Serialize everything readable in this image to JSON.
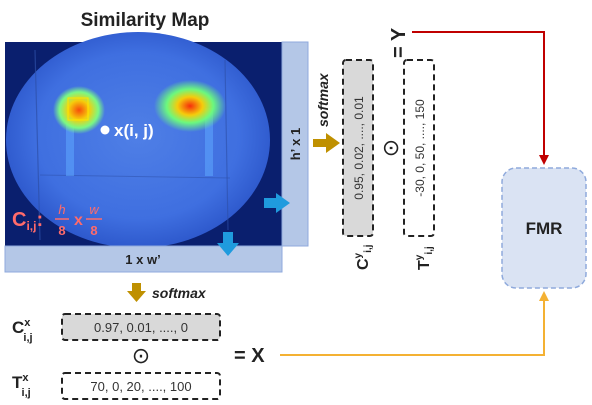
{
  "title": "Similarity Map",
  "map": {
    "point_label": "x(i, j)",
    "cell_formula": {
      "symbol": "C",
      "subscript": "i,j",
      "h_num": "h",
      "w_num": "w",
      "den": "8",
      "times": "x"
    }
  },
  "bars": {
    "vertical_label": "h’ x 1",
    "horizontal_label": "1 x w’"
  },
  "softmax_label": "softmax",
  "vectors": {
    "cy": {
      "symbol": "C",
      "sup": "y",
      "sub": "i,j",
      "values": "0.95, 0.02, ...., 0.01"
    },
    "ty": {
      "symbol": "T",
      "sup": "y",
      "sub": "i,j",
      "values": "-30, 0, 50, ...., 150"
    },
    "cx": {
      "symbol": "C",
      "sup": "x",
      "sub": "i,j",
      "values": "0.97, 0.01, ...., 0"
    },
    "tx": {
      "symbol": "T",
      "sup": "x",
      "sub": "i,j",
      "values": "70, 0, 20, ...., 100"
    }
  },
  "operator": "⊙",
  "result_y": "= Y",
  "result_x": "= X",
  "module": {
    "label": "FMR"
  },
  "colors": {
    "bar_fill": "#b4c7e7",
    "bar_stroke": "#8faadc",
    "softmax_arrow": "#bf9000",
    "blue_arrow": "#1f9bde",
    "red_arrow": "#c00000",
    "orange_arrow": "#f4b133",
    "formula_red": "#ff6b6b",
    "fmr_fill": "#dae3f3",
    "fmr_stroke": "#8faadc",
    "vector_fill": "#d9d9d9"
  }
}
